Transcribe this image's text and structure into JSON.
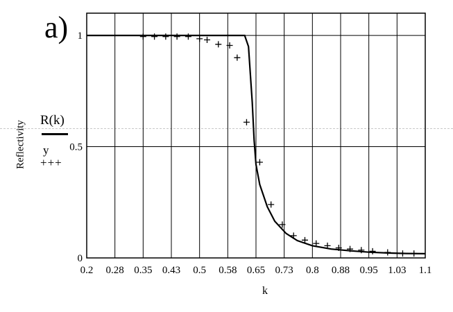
{
  "panel_label": "a)",
  "legend": {
    "line_label": "R(k)",
    "marker_label": "y",
    "marker_symbol": "+++"
  },
  "chart_data": {
    "type": "line",
    "xlabel": "k",
    "ylabel": "Reflectivity",
    "xlim": [
      0.2,
      1.1
    ],
    "ylim": [
      0,
      1.1
    ],
    "x_ticks": [
      "0.2",
      "0.28",
      "0.35",
      "0.43",
      "0.5",
      "0.58",
      "0.65",
      "0.73",
      "0.8",
      "0.88",
      "0.95",
      "1.03",
      "1.1"
    ],
    "y_ticks": [
      "0",
      "0.5",
      "1"
    ],
    "grid": true,
    "series": [
      {
        "name": "R(k)",
        "style": "line",
        "x": [
          0.2,
          0.3,
          0.4,
          0.5,
          0.6,
          0.62,
          0.63,
          0.64,
          0.645,
          0.65,
          0.66,
          0.68,
          0.7,
          0.73,
          0.76,
          0.8,
          0.85,
          0.9,
          0.95,
          1.0,
          1.05,
          1.1
        ],
        "y": [
          1.0,
          1.0,
          1.0,
          1.0,
          1.0,
          1.0,
          0.95,
          0.7,
          0.53,
          0.42,
          0.33,
          0.23,
          0.165,
          0.11,
          0.078,
          0.055,
          0.04,
          0.032,
          0.026,
          0.022,
          0.02,
          0.019
        ]
      },
      {
        "name": "y",
        "style": "plus",
        "x": [
          0.35,
          0.38,
          0.41,
          0.44,
          0.47,
          0.5,
          0.52,
          0.55,
          0.58,
          0.6,
          0.625,
          0.66,
          0.69,
          0.72,
          0.75,
          0.78,
          0.81,
          0.84,
          0.87,
          0.9,
          0.93,
          0.96,
          1.0,
          1.04,
          1.07
        ],
        "y": [
          0.995,
          0.995,
          0.995,
          0.995,
          0.995,
          0.985,
          0.98,
          0.96,
          0.955,
          0.9,
          0.61,
          0.43,
          0.24,
          0.15,
          0.1,
          0.08,
          0.065,
          0.055,
          0.045,
          0.04,
          0.035,
          0.03,
          0.025,
          0.02,
          0.02
        ]
      }
    ]
  }
}
